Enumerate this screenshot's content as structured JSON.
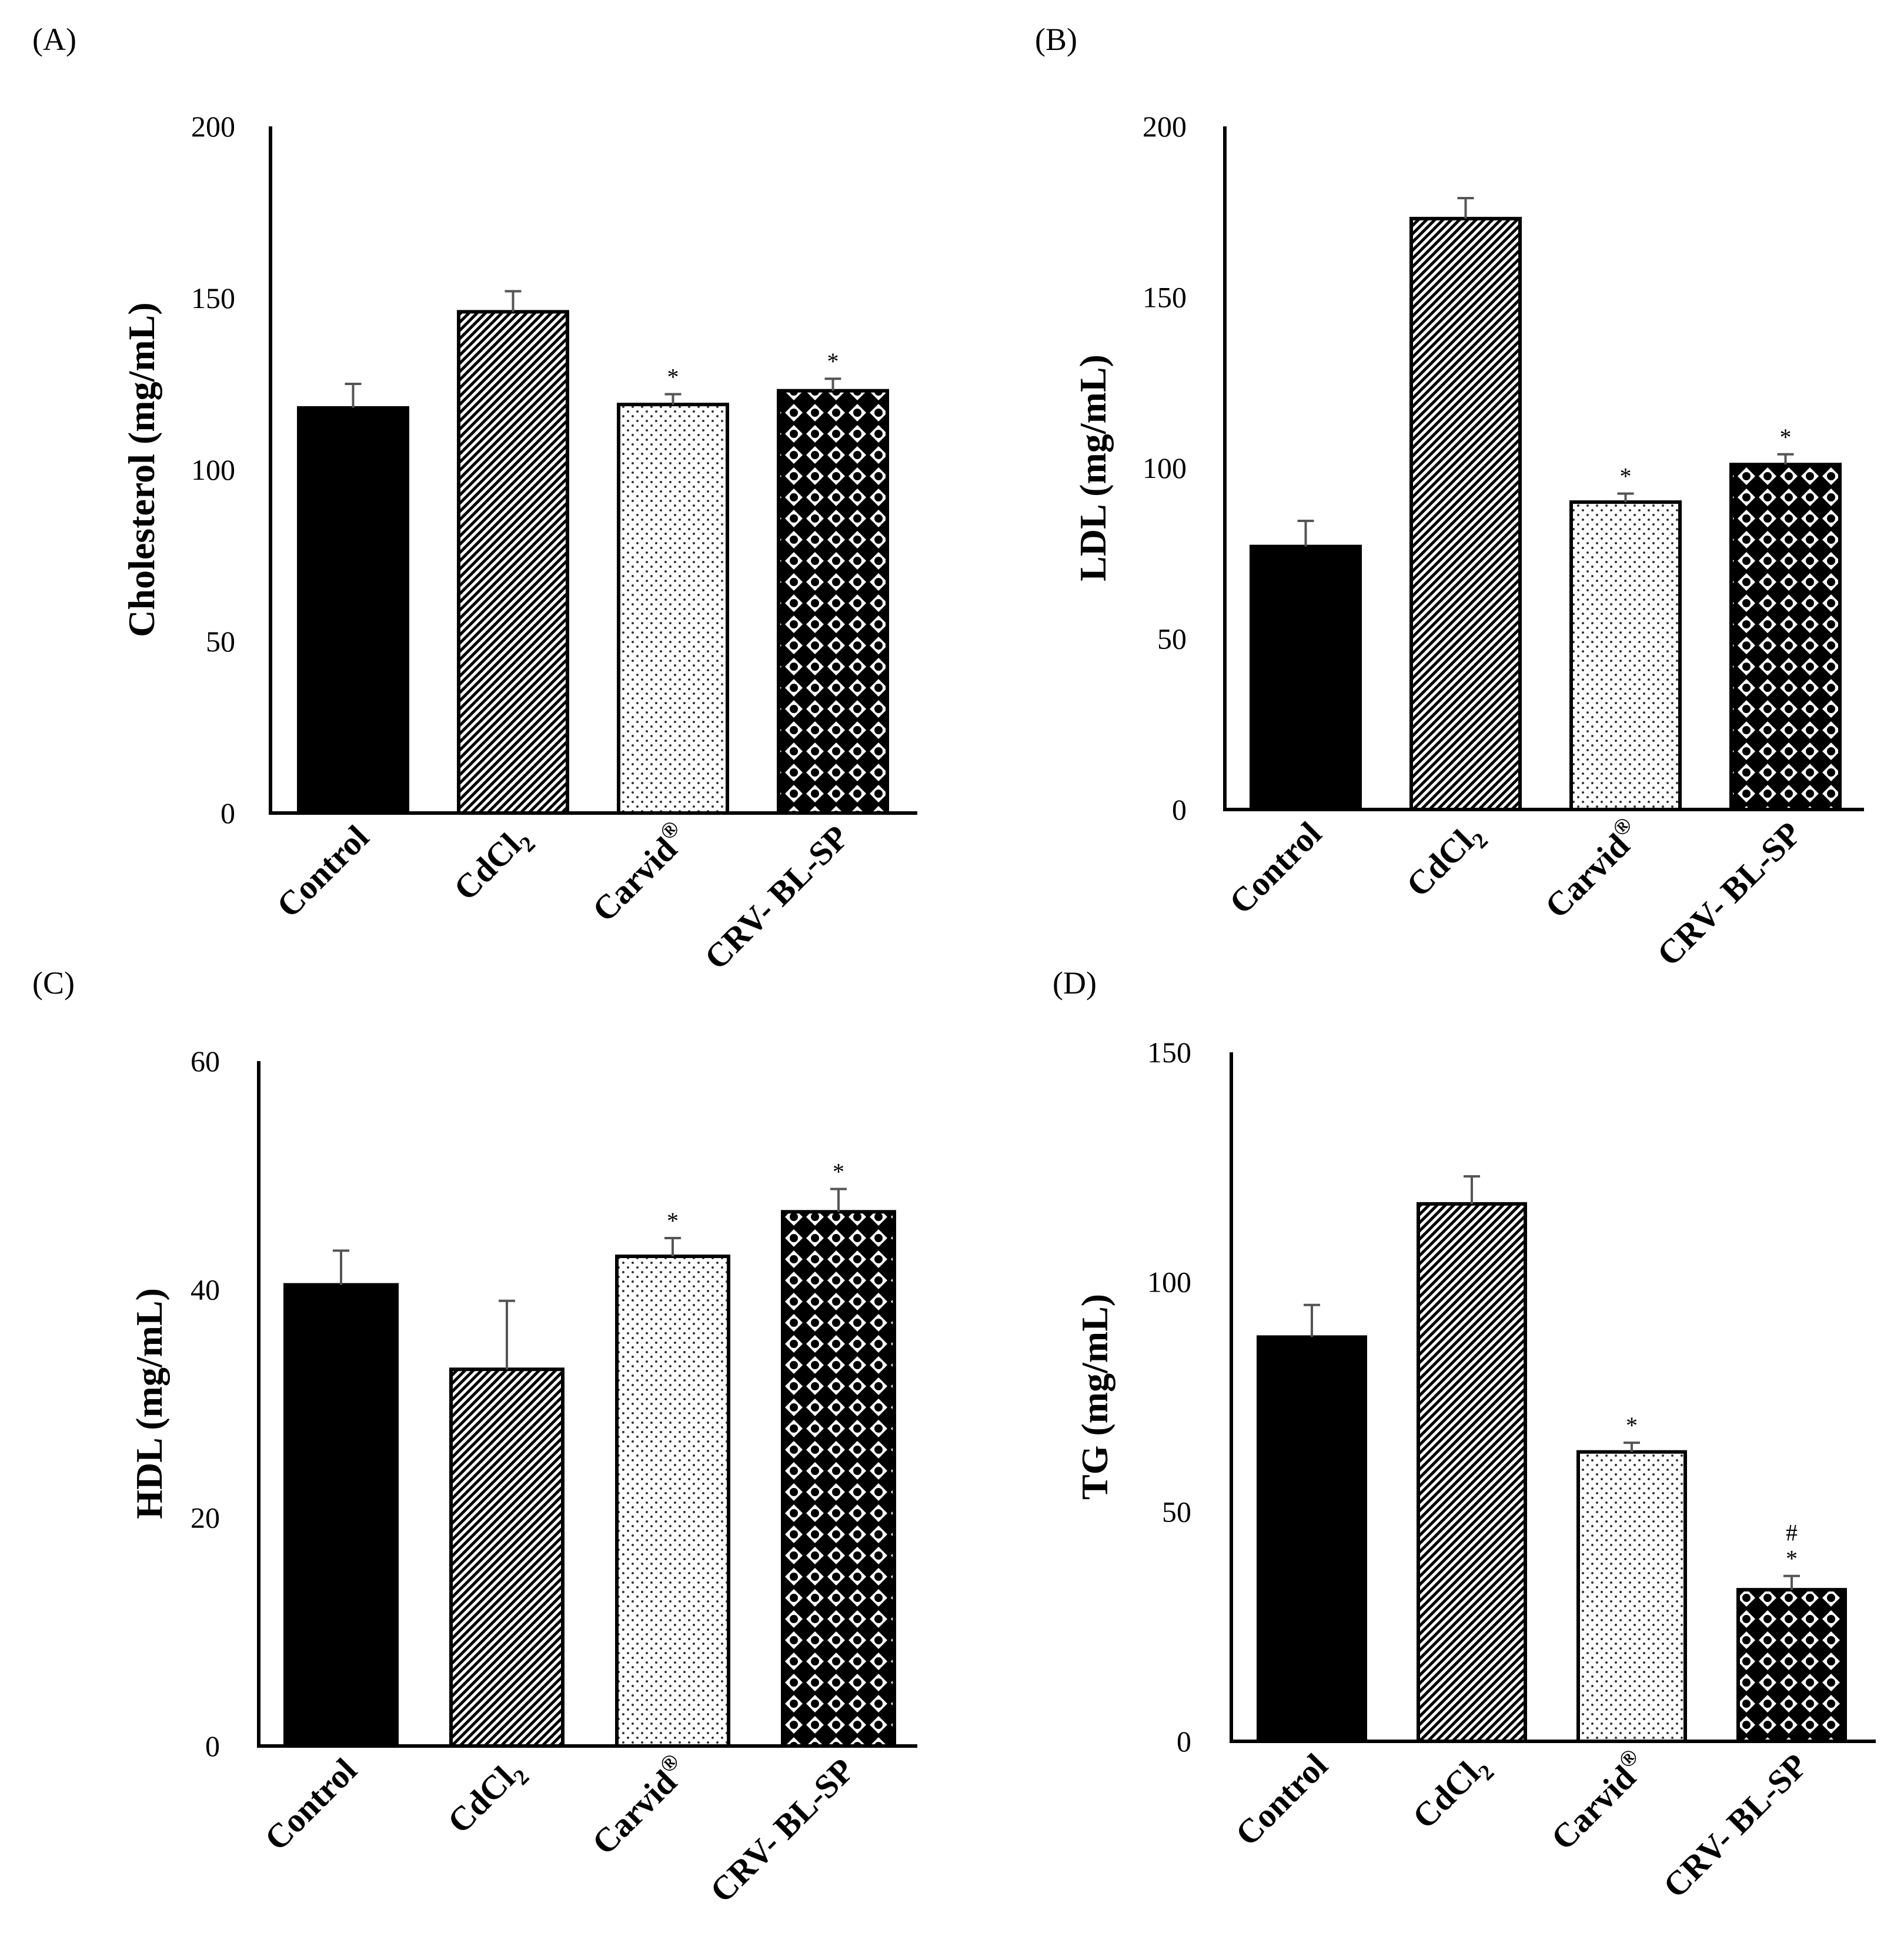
{
  "chart_data": [
    {
      "type": "bar",
      "panel": "(A)",
      "ylabel": "Cholesterol (mg/mL)",
      "ylim": [
        0,
        200
      ],
      "ticks": [
        "0",
        "50",
        "100",
        "150",
        "200"
      ],
      "categories": [
        {
          "label": "Control",
          "sub": "",
          "sup": "",
          "pattern": "solid",
          "value": 118,
          "error": 7,
          "marks": []
        },
        {
          "label": "CdCl",
          "sub": "2",
          "sup": "",
          "pattern": "diag",
          "value": 146,
          "error": 6,
          "marks": []
        },
        {
          "label": "Carvid",
          "sub": "",
          "sup": "®",
          "pattern": "dots",
          "value": 119,
          "error": 3,
          "marks": [
            "*"
          ]
        },
        {
          "label": "CRV- BL-SP",
          "sub": "",
          "sup": "",
          "pattern": "diamond",
          "value": 123,
          "error": 3.5,
          "marks": [
            "*"
          ]
        }
      ]
    },
    {
      "type": "bar",
      "panel": "(B)",
      "ylabel": "LDL (mg/mL)",
      "ylim": [
        0,
        200
      ],
      "ticks": [
        "0",
        "50",
        "100",
        "150",
        "200"
      ],
      "categories": [
        {
          "label": "Control",
          "sub": "",
          "sup": "",
          "pattern": "solid",
          "value": 77,
          "error": 7.5,
          "marks": []
        },
        {
          "label": "CdCl",
          "sub": "2",
          "sup": "",
          "pattern": "diag",
          "value": 173,
          "error": 6,
          "marks": []
        },
        {
          "label": "Carvid",
          "sub": "",
          "sup": "®",
          "pattern": "dots",
          "value": 90,
          "error": 2.5,
          "marks": [
            "*"
          ]
        },
        {
          "label": "CRV- BL-SP",
          "sub": "",
          "sup": "",
          "pattern": "diamond",
          "value": 101,
          "error": 3,
          "marks": [
            "*"
          ]
        }
      ]
    },
    {
      "type": "bar",
      "panel": "(C)",
      "ylabel": "HDL (mg/mL)",
      "ylim": [
        0,
        60
      ],
      "ticks": [
        "0",
        "20",
        "40",
        "60"
      ],
      "categories": [
        {
          "label": "Control",
          "sub": "",
          "sup": "",
          "pattern": "solid",
          "value": 40.4,
          "error": 3,
          "marks": []
        },
        {
          "label": "CdCl",
          "sub": "2",
          "sup": "",
          "pattern": "diag",
          "value": 33,
          "error": 6,
          "marks": []
        },
        {
          "label": "Carvid",
          "sub": "",
          "sup": "®",
          "pattern": "dots",
          "value": 42.9,
          "error": 1.6,
          "marks": [
            "*"
          ]
        },
        {
          "label": "CRV- BL-SP",
          "sub": "",
          "sup": "",
          "pattern": "diamond",
          "value": 46.8,
          "error": 2,
          "marks": [
            "*"
          ]
        }
      ]
    },
    {
      "type": "bar",
      "panel": "(D)",
      "ylabel": "TG (mg/mL)",
      "ylim": [
        0,
        150
      ],
      "ticks": [
        "0",
        "50",
        "100",
        "150"
      ],
      "categories": [
        {
          "label": "Control",
          "sub": "",
          "sup": "",
          "pattern": "solid",
          "value": 88,
          "error": 7,
          "marks": []
        },
        {
          "label": "CdCl",
          "sub": "2",
          "sup": "",
          "pattern": "diag",
          "value": 117,
          "error": 6,
          "marks": []
        },
        {
          "label": "Carvid",
          "sub": "",
          "sup": "®",
          "pattern": "dots",
          "value": 63,
          "error": 2,
          "marks": [
            "*"
          ]
        },
        {
          "label": "CRV- BL-SP",
          "sub": "",
          "sup": "",
          "pattern": "diamond",
          "value": 33,
          "error": 3,
          "marks": [
            "*",
            "#"
          ]
        }
      ]
    }
  ]
}
